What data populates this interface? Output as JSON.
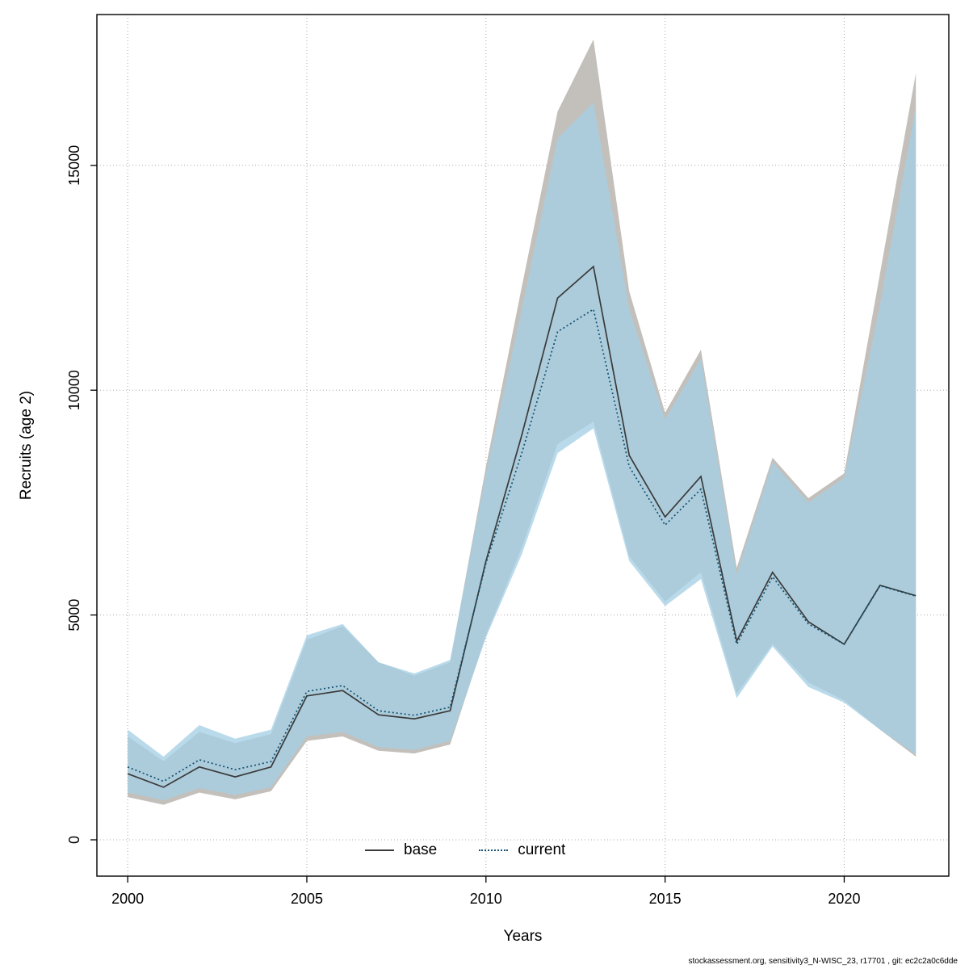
{
  "chart_data": {
    "type": "line",
    "title": "",
    "xlabel": "Years",
    "ylabel": "Recruits (age 2)",
    "xlim": [
      1999.14,
      2022.92
    ],
    "ylim": [
      -808,
      18355
    ],
    "x_ticks": [
      2000,
      2005,
      2010,
      2015,
      2020
    ],
    "y_ticks": [
      0,
      5000,
      10000,
      15000
    ],
    "grid": true,
    "grid_color": "#a8a8a8",
    "box_color": "#000000",
    "years": [
      2000,
      2001,
      2002,
      2003,
      2004,
      2005,
      2006,
      2007,
      2008,
      2009,
      2010,
      2011,
      2012,
      2013,
      2014,
      2015,
      2016,
      2017,
      2018,
      2019,
      2020,
      2021,
      2022
    ],
    "series": [
      {
        "name": "base",
        "line_style": "solid",
        "line_color": "#3a3a3a",
        "band_color": "#c3c0bc",
        "band_opacity": 1,
        "values": [
          1470,
          1170,
          1620,
          1400,
          1620,
          3200,
          3320,
          2780,
          2690,
          2870,
          6200,
          9000,
          12050,
          12750,
          8550,
          7180,
          8080,
          4420,
          5950,
          4850,
          4350,
          5660,
          5430
        ],
        "lower": [
          950,
          780,
          1050,
          900,
          1080,
          2200,
          2300,
          1980,
          1920,
          2120,
          4550,
          6500,
          8800,
          9300,
          6300,
          5300,
          5950,
          3250,
          4350,
          3500,
          3100,
          2450,
          1850
        ],
        "upper": [
          2300,
          1750,
          2400,
          2150,
          2350,
          4450,
          4750,
          3950,
          3650,
          3950,
          8300,
          12300,
          16200,
          17800,
          12200,
          9500,
          10900,
          6050,
          8500,
          7600,
          8150,
          12600,
          17050
        ]
      },
      {
        "name": "current",
        "line_style": "dotted",
        "line_color": "#14506e",
        "band_color": "#a5cfe4",
        "band_opacity": 0.78,
        "values": [
          1620,
          1300,
          1780,
          1560,
          1740,
          3300,
          3430,
          2870,
          2770,
          2950,
          6150,
          8600,
          11300,
          11800,
          8300,
          7000,
          7800,
          4350,
          5850,
          4800,
          4350,
          5650,
          5420
        ],
        "lower": [
          1050,
          880,
          1150,
          1000,
          1170,
          2300,
          2400,
          2060,
          2000,
          2200,
          4500,
          6350,
          8600,
          9150,
          6200,
          5200,
          5800,
          3150,
          4300,
          3400,
          3050,
          2450,
          1900
        ],
        "upper": [
          2450,
          1850,
          2550,
          2250,
          2450,
          4550,
          4800,
          3950,
          3700,
          4000,
          8150,
          11800,
          15600,
          16400,
          11800,
          9350,
          10700,
          5900,
          8400,
          7500,
          8050,
          11900,
          16300
        ]
      }
    ],
    "legend": {
      "position": "bottom-center-inside",
      "items": [
        {
          "label": "base"
        },
        {
          "label": "current"
        }
      ]
    },
    "footer": "stockassessment.org, sensitivity3_N-WISC_23, r17701 , git: ec2c2a0c6dde"
  }
}
